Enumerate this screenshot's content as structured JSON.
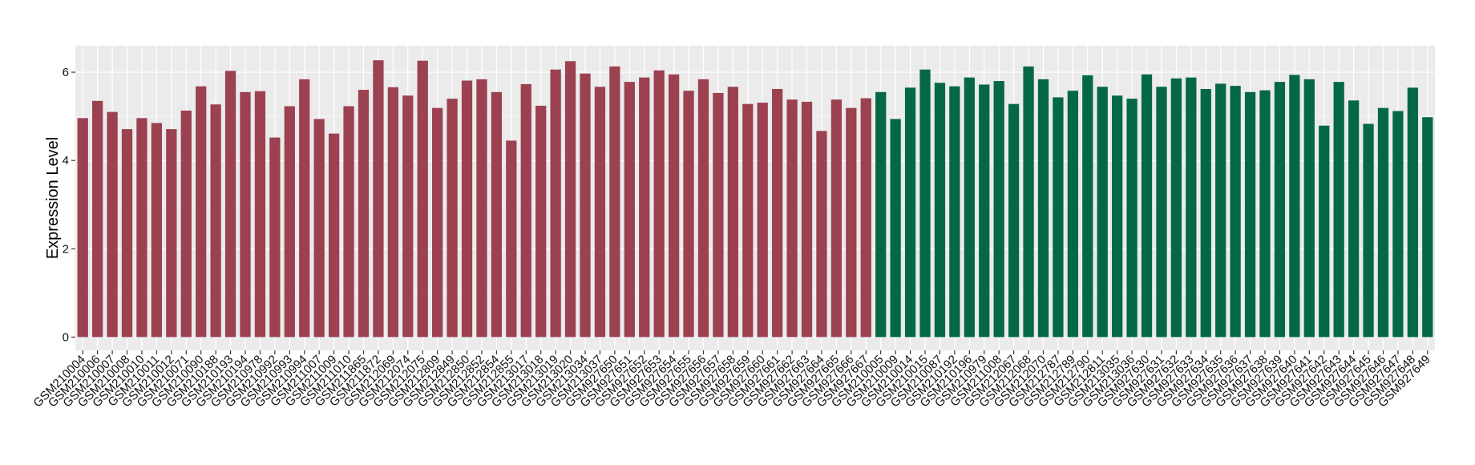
{
  "chart_data": {
    "type": "bar",
    "title": "",
    "xlabel": "",
    "ylabel": "Expression Level",
    "ylim": [
      -0.3,
      6.6
    ],
    "yticks": [
      0,
      2,
      4,
      6
    ],
    "grid": true,
    "legend": "none",
    "colors": {
      "group1": "#9C4150",
      "group2": "#056845",
      "panel": "#EBEBEB",
      "grid": "#FFFFFF"
    },
    "categories": [
      "GSM210004",
      "GSM210006",
      "GSM210007",
      "GSM210008",
      "GSM210010",
      "GSM210011",
      "GSM210012",
      "GSM210071",
      "GSM210090",
      "GSM210188",
      "GSM210193",
      "GSM210194",
      "GSM210978",
      "GSM210992",
      "GSM210993",
      "GSM210994",
      "GSM211007",
      "GSM211009",
      "GSM211010",
      "GSM211865",
      "GSM211872",
      "GSM212069",
      "GSM212074",
      "GSM212075",
      "GSM212809",
      "GSM212849",
      "GSM212850",
      "GSM212852",
      "GSM212854",
      "GSM212855",
      "GSM213017",
      "GSM213018",
      "GSM213019",
      "GSM213020",
      "GSM213034",
      "GSM213037",
      "GSM927650",
      "GSM927651",
      "GSM927652",
      "GSM927653",
      "GSM927654",
      "GSM927655",
      "GSM927656",
      "GSM927657",
      "GSM927658",
      "GSM927659",
      "GSM927660",
      "GSM927661",
      "GSM927662",
      "GSM927663",
      "GSM927664",
      "GSM927665",
      "GSM927666",
      "GSM927667",
      "GSM210005",
      "GSM210009",
      "GSM210014",
      "GSM210015",
      "GSM210087",
      "GSM210192",
      "GSM210196",
      "GSM210979",
      "GSM211008",
      "GSM212067",
      "GSM212068",
      "GSM212070",
      "GSM212787",
      "GSM212789",
      "GSM212790",
      "GSM212811",
      "GSM213035",
      "GSM213036",
      "GSM927630",
      "GSM927631",
      "GSM927632",
      "GSM927633",
      "GSM927634",
      "GSM927635",
      "GSM927636",
      "GSM927637",
      "GSM927638",
      "GSM927639",
      "GSM927640",
      "GSM927641",
      "GSM927642",
      "GSM927643",
      "GSM927644",
      "GSM927645",
      "GSM927646",
      "GSM927647",
      "GSM927648",
      "GSM927649"
    ],
    "values": [
      4.96,
      5.35,
      5.1,
      4.71,
      4.96,
      4.85,
      4.71,
      5.13,
      5.68,
      5.27,
      6.03,
      5.55,
      5.57,
      4.52,
      5.23,
      5.84,
      4.94,
      4.61,
      5.23,
      5.6,
      6.27,
      5.66,
      5.47,
      6.26,
      5.19,
      5.4,
      5.81,
      5.84,
      5.55,
      4.45,
      5.73,
      5.24,
      6.06,
      6.25,
      5.97,
      5.67,
      6.13,
      5.78,
      5.88,
      6.04,
      5.95,
      5.58,
      5.84,
      5.53,
      5.67,
      5.28,
      5.31,
      5.62,
      5.38,
      5.33,
      4.67,
      5.38,
      5.19,
      5.41,
      5.55,
      4.94,
      5.65,
      6.06,
      5.76,
      5.68,
      5.88,
      5.72,
      5.8,
      5.28,
      6.13,
      5.84,
      5.43,
      5.58,
      5.93,
      5.67,
      5.47,
      5.4,
      5.95,
      5.67,
      5.86,
      5.88,
      5.62,
      5.74,
      5.69,
      5.55,
      5.59,
      5.78,
      5.94,
      5.84,
      4.79,
      5.78,
      5.36,
      4.83,
      5.19,
      5.12,
      5.65,
      4.98
    ],
    "groups": [
      1,
      1,
      1,
      1,
      1,
      1,
      1,
      1,
      1,
      1,
      1,
      1,
      1,
      1,
      1,
      1,
      1,
      1,
      1,
      1,
      1,
      1,
      1,
      1,
      1,
      1,
      1,
      1,
      1,
      1,
      1,
      1,
      1,
      1,
      1,
      1,
      1,
      1,
      1,
      1,
      1,
      1,
      1,
      1,
      1,
      1,
      1,
      1,
      1,
      1,
      1,
      1,
      1,
      1,
      2,
      2,
      2,
      2,
      2,
      2,
      2,
      2,
      2,
      2,
      2,
      2,
      2,
      2,
      2,
      2,
      2,
      2,
      2,
      2,
      2,
      2,
      2,
      2,
      2,
      2,
      2,
      2,
      2,
      2,
      2,
      2,
      2,
      2,
      2,
      2,
      2,
      2
    ]
  }
}
